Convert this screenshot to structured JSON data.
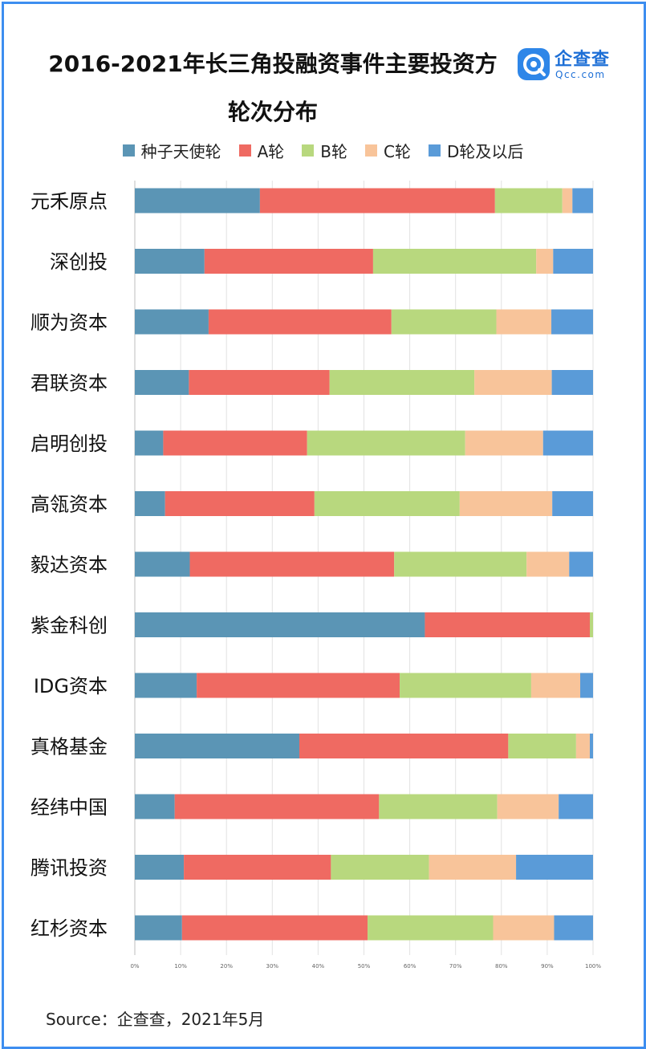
{
  "title_line1": "2016-2021年长三角投融资事件主要投资方",
  "title_line2": "轮次分布",
  "logo": {
    "name": "企查查",
    "url": "Qcc.com",
    "icon": "qcc-logo-icon"
  },
  "source": "Source：企查查，2021年5月",
  "colors": {
    "frame": "#3d8ef0"
  },
  "chart_data": {
    "type": "bar",
    "orientation": "horizontal",
    "stacked": true,
    "normalized": true,
    "categories": [
      "元禾原点",
      "深创投",
      "顺为资本",
      "君联资本",
      "启明创投",
      "高瓴资本",
      "毅达资本",
      "紫金科创",
      "IDG资本",
      "真格基金",
      "经纬中国",
      "腾讯投资",
      "红杉资本"
    ],
    "series": [
      {
        "name": "种子天使轮",
        "color": "#5b95b5",
        "values": [
          0.273,
          0.152,
          0.161,
          0.118,
          0.062,
          0.066,
          0.12,
          0.633,
          0.135,
          0.359,
          0.087,
          0.107,
          0.103
        ]
      },
      {
        "name": "A轮",
        "color": "#ef6a62",
        "values": [
          0.513,
          0.368,
          0.399,
          0.307,
          0.314,
          0.326,
          0.446,
          0.36,
          0.443,
          0.456,
          0.446,
          0.321,
          0.405
        ]
      },
      {
        "name": "B轮",
        "color": "#b8d87e",
        "values": [
          0.147,
          0.356,
          0.229,
          0.316,
          0.345,
          0.317,
          0.289,
          0.007,
          0.287,
          0.148,
          0.258,
          0.214,
          0.274
        ]
      },
      {
        "name": "C轮",
        "color": "#f8c49a",
        "values": [
          0.022,
          0.037,
          0.12,
          0.169,
          0.17,
          0.202,
          0.093,
          0.0,
          0.107,
          0.03,
          0.134,
          0.19,
          0.133
        ]
      },
      {
        "name": "D轮及以后",
        "color": "#5a9bd8",
        "values": [
          0.045,
          0.087,
          0.091,
          0.09,
          0.109,
          0.089,
          0.052,
          0.0,
          0.028,
          0.007,
          0.075,
          0.168,
          0.085
        ]
      }
    ],
    "xlim": [
      0,
      1
    ],
    "xticks": [
      "0%",
      "10%",
      "20%",
      "30%",
      "40%",
      "50%",
      "60%",
      "70%",
      "80%",
      "90%",
      "100%"
    ],
    "grid": true,
    "legend_position": "top"
  }
}
